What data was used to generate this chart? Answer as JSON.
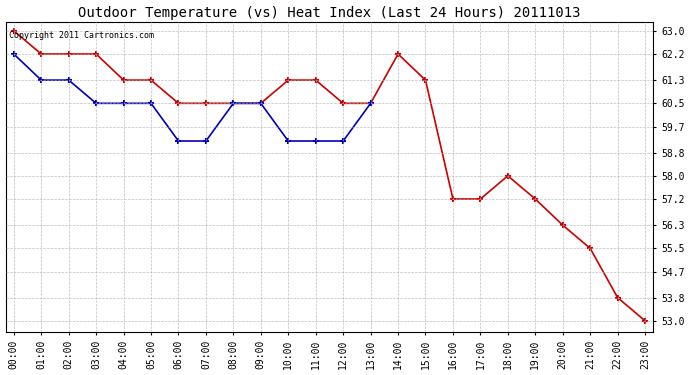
{
  "title": "Outdoor Temperature (vs) Heat Index (Last 24 Hours) 20111013",
  "copyright_text": "Copyright 2011 Cartronics.com",
  "hours": [
    0,
    1,
    2,
    3,
    4,
    5,
    6,
    7,
    8,
    9,
    10,
    11,
    12,
    13,
    14,
    15,
    16,
    17,
    18,
    19,
    20,
    21,
    22,
    23
  ],
  "hour_labels": [
    "00:00",
    "01:00",
    "02:00",
    "03:00",
    "04:00",
    "05:00",
    "06:00",
    "07:00",
    "08:00",
    "09:00",
    "10:00",
    "11:00",
    "12:00",
    "13:00",
    "14:00",
    "15:00",
    "16:00",
    "17:00",
    "18:00",
    "19:00",
    "20:00",
    "21:00",
    "22:00",
    "23:00"
  ],
  "red_line": [
    63.0,
    62.2,
    62.2,
    62.2,
    61.3,
    61.3,
    60.5,
    60.5,
    60.5,
    60.5,
    61.3,
    61.3,
    60.5,
    60.5,
    62.2,
    61.3,
    57.2,
    57.2,
    58.0,
    57.2,
    56.3,
    55.5,
    53.8,
    53.0
  ],
  "blue_line_x": [
    0,
    1,
    2,
    3,
    4,
    5,
    6,
    7,
    8,
    9,
    10,
    11,
    12,
    13
  ],
  "blue_line_y": [
    62.2,
    61.3,
    61.3,
    60.5,
    60.5,
    60.5,
    59.2,
    59.2,
    60.5,
    60.5,
    59.2,
    59.2,
    59.2,
    60.5
  ],
  "ylim_min": 52.6,
  "ylim_max": 63.3,
  "yticks": [
    53.0,
    53.8,
    54.7,
    55.5,
    56.3,
    57.2,
    58.0,
    58.8,
    59.7,
    60.5,
    61.3,
    62.2,
    63.0
  ],
  "red_color": "#cc0000",
  "blue_color": "#0000bb",
  "bg_color": "#ffffff",
  "plot_bg_color": "#ffffff",
  "grid_color": "#b0b0b0",
  "title_fontsize": 10,
  "tick_fontsize": 7,
  "copyright_fontsize": 6
}
